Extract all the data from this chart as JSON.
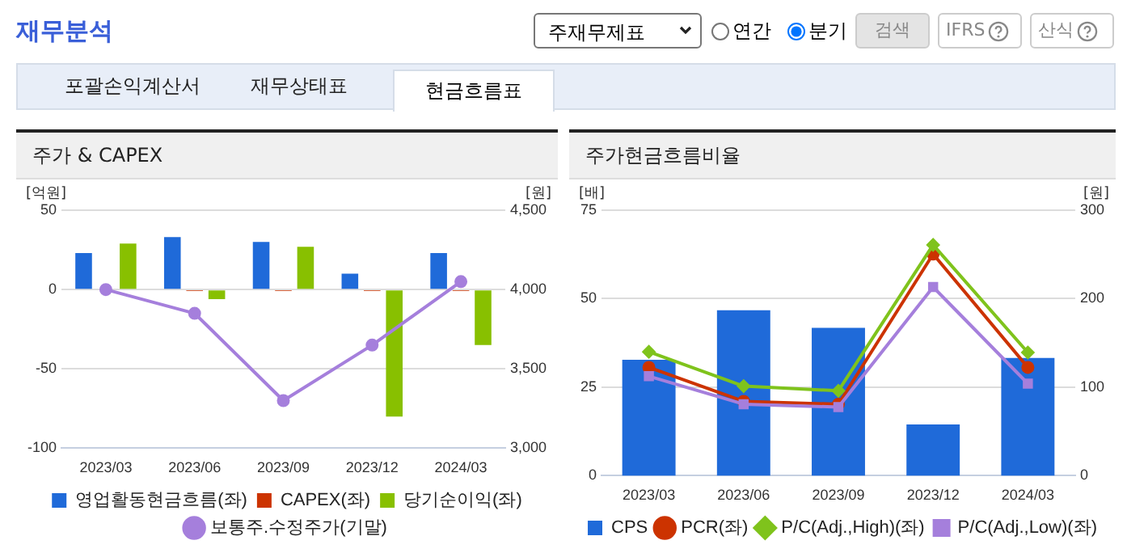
{
  "chart_data": [
    {
      "type": "bar",
      "title": "주가 & CAPEX",
      "ylabel": "[억원]",
      "y2label": "[원]",
      "annotations": [
        "재무분석",
        "주재무제표",
        "연간",
        "분기",
        "검색",
        "IFRS",
        "산식",
        "포괄손익계산서",
        "재무상태표",
        "현금흐름표"
      ],
      "categories": [
        "2023/03",
        "2023/06",
        "2023/09",
        "2023/12",
        "2024/03"
      ],
      "series": [
        {
          "name": "영업활동현금흐름(좌)",
          "color": "#1f6ad9",
          "values": [
            23,
            33,
            30,
            10,
            23
          ]
        },
        {
          "name": "CAPEX(좌)",
          "color": "#cc3300",
          "values": [
            null,
            -1,
            -1,
            -1,
            -1
          ]
        },
        {
          "name": "당기순이익(좌)",
          "color": "#88c000",
          "values": [
            29,
            -6,
            27,
            -80,
            -35
          ]
        },
        {
          "name": "보통주.수정주가(기말)",
          "type": "line",
          "axis": "y2",
          "marker": "circle",
          "color": "#a57fdc",
          "values": [
            4000,
            3850,
            3300,
            3650,
            4050
          ]
        }
      ],
      "ylim": [
        -100,
        50
      ],
      "yticks": [
        -100,
        -50,
        0,
        50
      ],
      "y2lim": [
        3000,
        4500
      ],
      "y2ticks": [
        {
          "value": 3000,
          "label": "3,000"
        },
        {
          "value": 3500,
          "label": "3,500"
        },
        {
          "value": 4000,
          "label": "4,000"
        },
        {
          "value": 4500,
          "label": "4,500"
        }
      ],
      "grid": "y",
      "legend": "bottom"
    },
    {
      "type": "line",
      "title": "주가현금흐름비율",
      "ylabel": "[배]",
      "y2label": "[원]",
      "categories": [
        "2023/03",
        "2023/06",
        "2023/09",
        "2023/12",
        "2024/03"
      ],
      "series": [
        {
          "name": "CPS",
          "type": "bar",
          "axis": "y2",
          "color": "#1f6ad9",
          "values": [
            131,
            187,
            167,
            58,
            133
          ]
        },
        {
          "name": "PCR(좌)",
          "marker": "circle",
          "color": "#cc3300",
          "values": [
            30.6,
            21,
            20.2,
            62.6,
            30.6
          ]
        },
        {
          "name": "P/C(Adj.,High)(좌)",
          "marker": "diamond",
          "color": "#7fc31c",
          "values": [
            35,
            25.3,
            24,
            65.2,
            34.8
          ]
        },
        {
          "name": "P/C(Adj.,Low)(좌)",
          "marker": "square",
          "color": "#a57fdc",
          "values": [
            28.1,
            20.2,
            19.4,
            53.3,
            26
          ]
        }
      ],
      "ylim": [
        0,
        75
      ],
      "yticks": [
        0,
        25,
        50,
        75
      ],
      "y2lim": [
        0,
        300
      ],
      "y2ticks": [
        0,
        100,
        200,
        300
      ],
      "grid": "y",
      "legend": "bottom"
    }
  ]
}
